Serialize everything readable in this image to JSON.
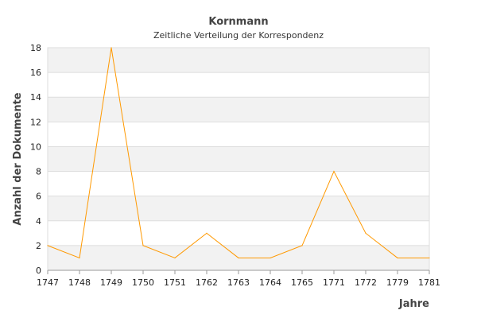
{
  "chart_data": {
    "type": "line",
    "title": "Kornmann",
    "subtitle": "Zeitliche Verteilung der Korrespondenz",
    "xlabel": "Jahre",
    "ylabel": "Anzahl der Dokumente",
    "categories": [
      "1747",
      "1748",
      "1749",
      "1750",
      "1751",
      "1762",
      "1763",
      "1764",
      "1765",
      "1771",
      "1772",
      "1779",
      "1781"
    ],
    "series": [
      {
        "values": [
          2,
          1,
          18,
          2,
          1,
          3,
          1,
          1,
          2,
          8,
          3,
          1,
          1
        ]
      }
    ],
    "ylim": [
      0,
      18
    ],
    "yticks": [
      0,
      2,
      4,
      6,
      8,
      10,
      12,
      14,
      16,
      18
    ],
    "line_color": "#ff9900",
    "band_color": "#f2f2f2",
    "grid": true
  }
}
